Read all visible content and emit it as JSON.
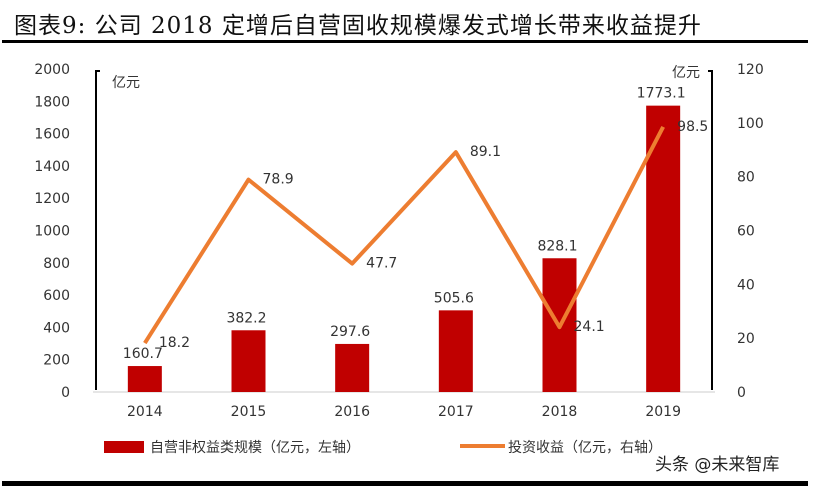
{
  "title": "图表9:  公司 2018 定增后自营固收规模爆发式增长带来收益提升",
  "watermark": "头条 @未来智库",
  "chart_data": {
    "type": "bar+line",
    "categories": [
      "2014",
      "2015",
      "2016",
      "2017",
      "2018",
      "2019"
    ],
    "series": [
      {
        "name": "自营非权益类规模（亿元，左轴）",
        "type": "bar",
        "axis": "left",
        "color": "#C00000",
        "values": [
          160.7,
          382.2,
          297.6,
          505.6,
          828.1,
          1773.1
        ]
      },
      {
        "name": "投资收益（亿元，右轴）",
        "type": "line",
        "axis": "right",
        "color": "#ED7D31",
        "values": [
          18.2,
          78.9,
          47.7,
          89.1,
          24.1,
          98.5
        ]
      }
    ],
    "left_axis": {
      "unit": "亿元",
      "ylim": [
        0,
        2000
      ],
      "ticks": [
        0,
        200,
        400,
        600,
        800,
        1000,
        1200,
        1400,
        1600,
        1800,
        2000
      ]
    },
    "right_axis": {
      "unit": "亿元",
      "ylim": [
        0,
        120
      ],
      "ticks": [
        0,
        20,
        40,
        60,
        80,
        100,
        120
      ]
    },
    "legend": "bottom",
    "grid": false
  }
}
